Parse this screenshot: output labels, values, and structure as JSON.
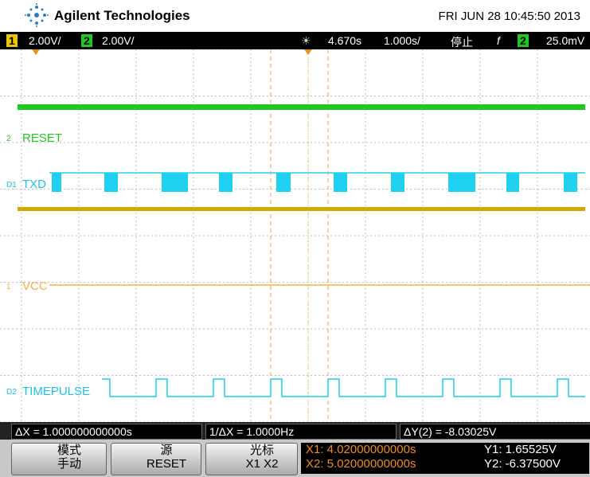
{
  "header": {
    "brand": "Agilent Technologies",
    "datetime": "FRI JUN 28 10:45:50 2013"
  },
  "status": {
    "ch1_num": "1",
    "ch1_scale": "2.00V/",
    "ch2_num": "2",
    "ch2_scale": "2.00V/",
    "time_offset": "4.670s",
    "timebase": "1.000s/",
    "run_state": "停止",
    "trigger_symbol": "f",
    "trigger_channel": "2",
    "trigger_level": "25.0mV"
  },
  "channels": [
    {
      "marker": "2",
      "label": "RESET"
    },
    {
      "marker": "D1",
      "label": "TXD"
    },
    {
      "marker": "1",
      "label": "VCC"
    },
    {
      "marker": "D2",
      "label": "TIMEPULSE"
    }
  ],
  "measurements": {
    "delta_x": "ΔX = 1.000000000000s",
    "inv_delta_x": "1/ΔX = 1.0000Hz",
    "delta_y": "ΔY(2) = -8.03025V"
  },
  "softkeys": [
    {
      "line1": "模式",
      "line2": "手动"
    },
    {
      "line1": "源",
      "line2": "RESET"
    },
    {
      "line1": "光标",
      "line2": "X1 X2"
    }
  ],
  "cursors": {
    "x1": "X1: 4.02000000000s",
    "x2": "X2: 5.02000000000s",
    "y1": "Y1: 1.65525V",
    "y2": "Y2: -6.37500V"
  }
}
